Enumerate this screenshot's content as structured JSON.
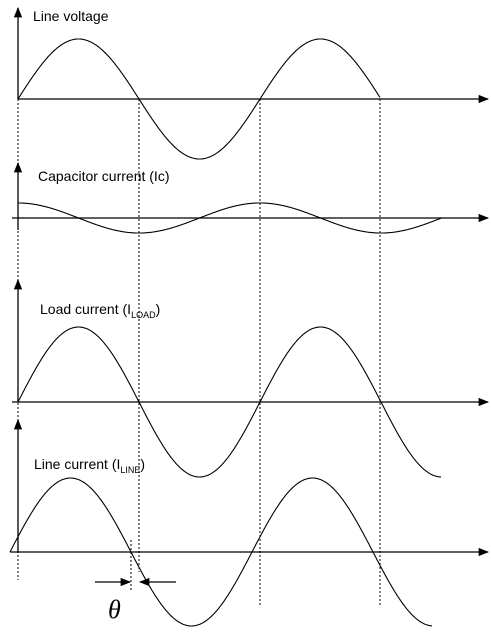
{
  "panels": [
    {
      "label": "Line voltage"
    },
    {
      "label": "Capacitor current (Ic)"
    },
    {
      "label": "Load current (I",
      "subscript": "LOAD",
      "suffix": ")"
    },
    {
      "label": "Line current (I",
      "subscript": "LINE",
      "suffix": ")"
    }
  ],
  "phase_symbol": "θ"
}
